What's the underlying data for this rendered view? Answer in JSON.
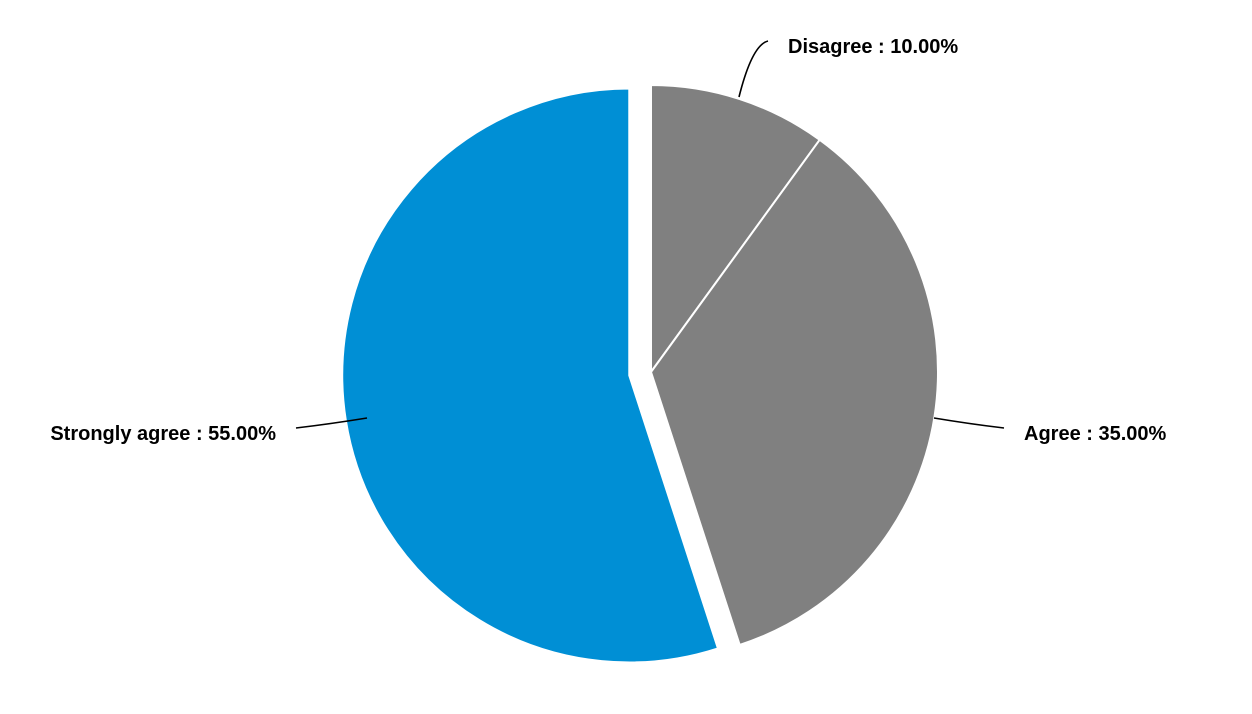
{
  "chart_data": {
    "type": "pie",
    "slices": [
      {
        "label": "Disagree",
        "value": 10.0,
        "display": "Disagree : 10.00%",
        "color": "#808080",
        "exploded": false,
        "label_position": "top-right"
      },
      {
        "label": "Agree",
        "value": 35.0,
        "display": "Agree : 35.00%",
        "color": "#808080",
        "exploded": false,
        "label_position": "right"
      },
      {
        "label": "Strongly agree",
        "value": 55.0,
        "display": "Strongly agree : 55.00%",
        "color": "#008fd5",
        "exploded": true,
        "label_position": "left"
      }
    ],
    "title": "",
    "legend": "none",
    "start_angle": "12 o'clock",
    "direction": "clockwise"
  }
}
